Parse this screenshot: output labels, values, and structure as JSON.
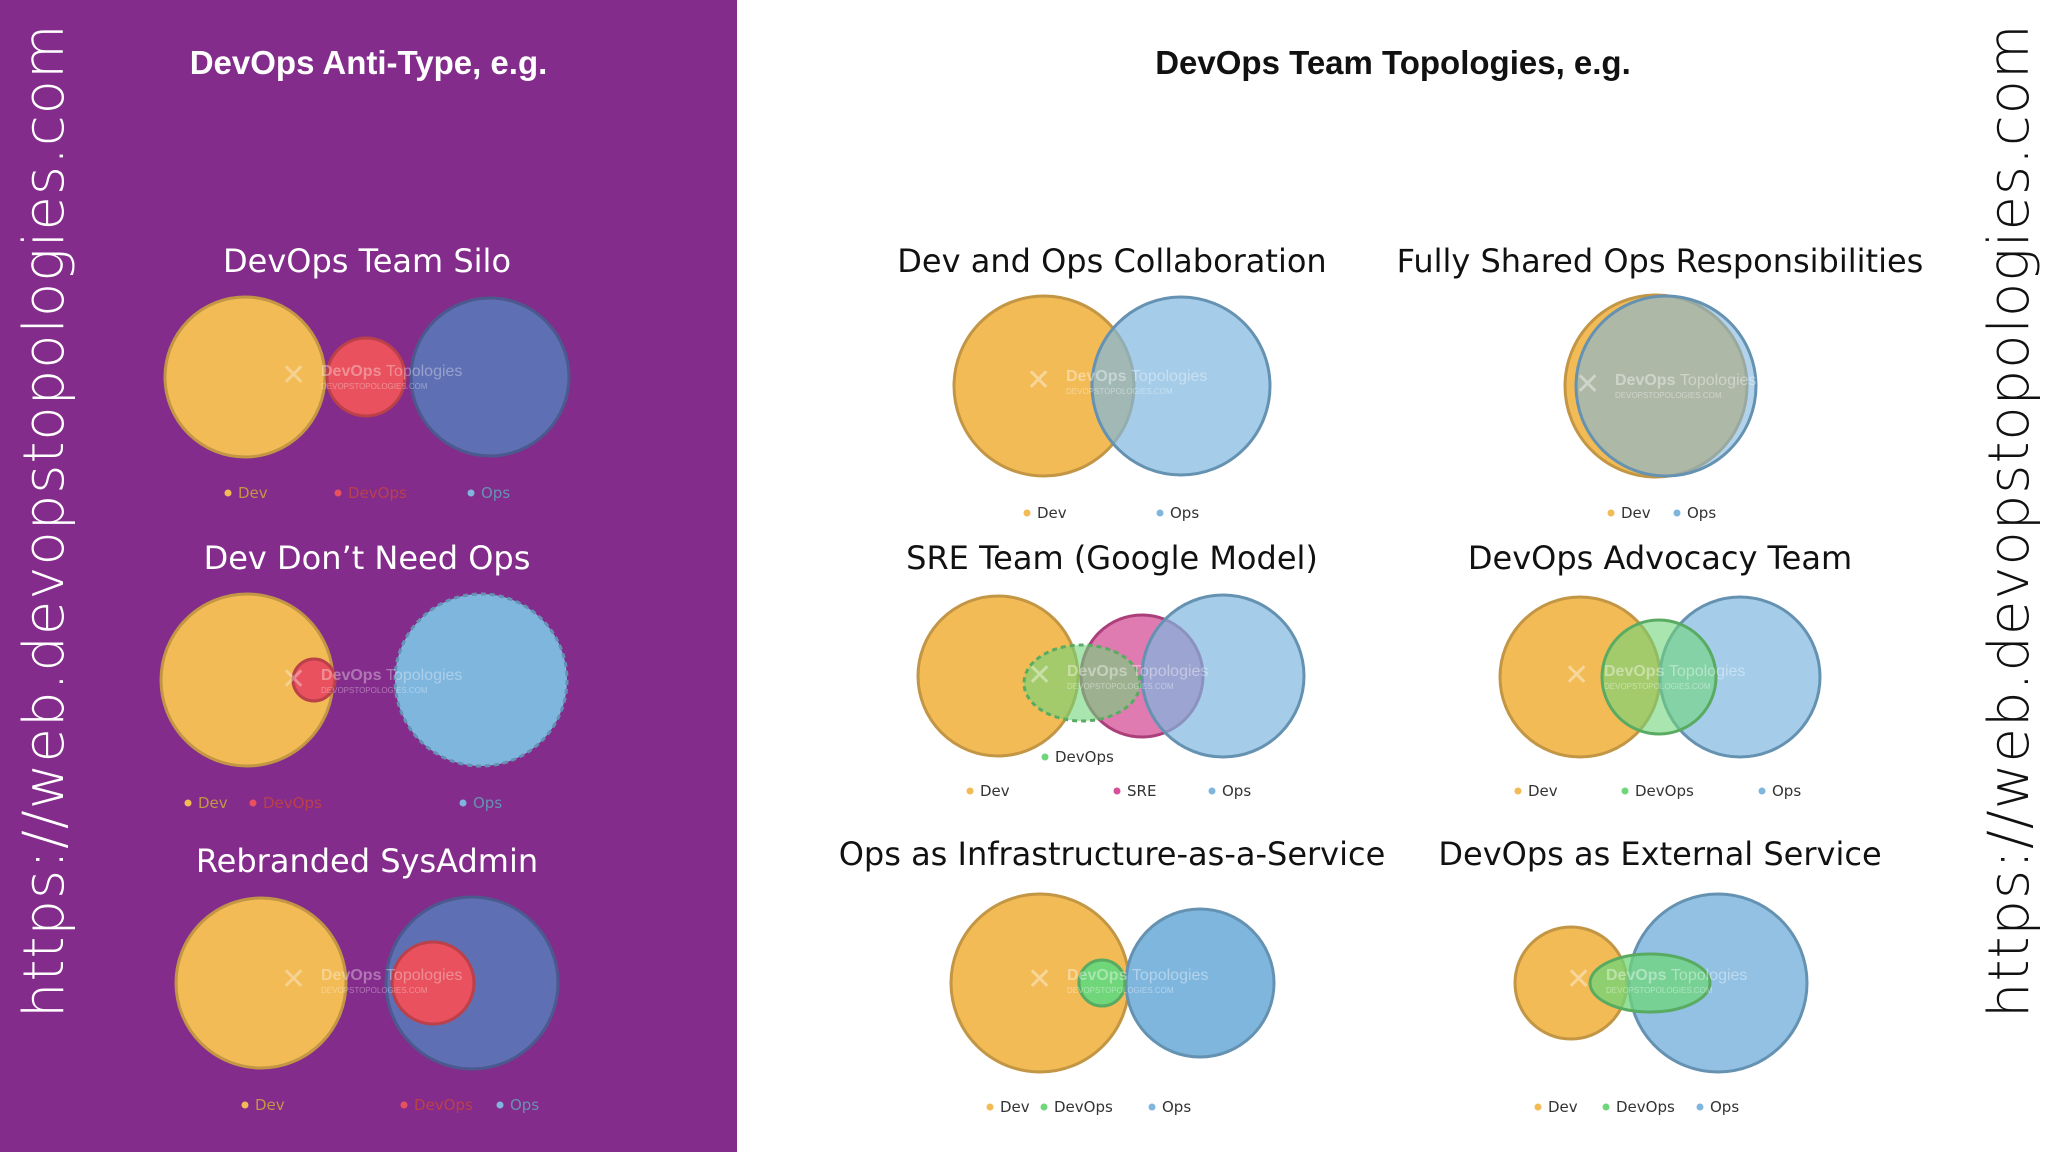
{
  "colors": {
    "panel": "#842c8b",
    "dev": "#f2bb55",
    "ops": "#7fb6de",
    "opsDark": "#5f6fb3",
    "devops": "#e8515d",
    "green": "#6fd67a",
    "sre": "#d64f98"
  },
  "left": {
    "heading": "DevOps Anti-Type, e.g.",
    "url": "https://web.devopstopologies.com"
  },
  "right": {
    "heading": "DevOps Team Topologies, e.g.",
    "url": "https://web.devopstopologies.com"
  },
  "watermark": {
    "brand": "DevOps",
    "suffix": "Topologies",
    "domain": "DEVOPSTOPOLOGIES.COM"
  },
  "diagrams": [
    {
      "id": "silo",
      "title": "DevOps Team Silo",
      "theme": "dark",
      "legend": [
        "Dev",
        "DevOps",
        "Ops"
      ]
    },
    {
      "id": "dev-dont-need-ops",
      "title": "Dev Don’t Need Ops",
      "theme": "dark",
      "legend": [
        "Dev",
        "DevOps",
        "Ops"
      ]
    },
    {
      "id": "rebranded-sysadmin",
      "title": "Rebranded SysAdmin",
      "theme": "dark",
      "legend": [
        "Dev",
        "DevOps",
        "Ops"
      ]
    },
    {
      "id": "collaboration",
      "title": "Dev and Ops Collaboration",
      "theme": "light",
      "legend": [
        "Dev",
        "Ops"
      ]
    },
    {
      "id": "shared-ops",
      "title": "Fully Shared Ops Responsibilities",
      "theme": "light",
      "legend": [
        "Dev",
        "Ops"
      ]
    },
    {
      "id": "sre",
      "title": "SRE Team (Google Model)",
      "theme": "light",
      "legend": [
        "DevOps",
        "Dev",
        "SRE",
        "Ops"
      ]
    },
    {
      "id": "advocacy",
      "title": "DevOps Advocacy Team",
      "theme": "light",
      "legend": [
        "Dev",
        "DevOps",
        "Ops"
      ]
    },
    {
      "id": "iaas",
      "title": "Ops as Infrastructure-as-a-Service",
      "theme": "light",
      "legend": [
        "Dev",
        "DevOps",
        "Ops"
      ]
    },
    {
      "id": "external",
      "title": "DevOps as External Service",
      "theme": "light",
      "legend": [
        "Dev",
        "DevOps",
        "Ops"
      ]
    }
  ]
}
